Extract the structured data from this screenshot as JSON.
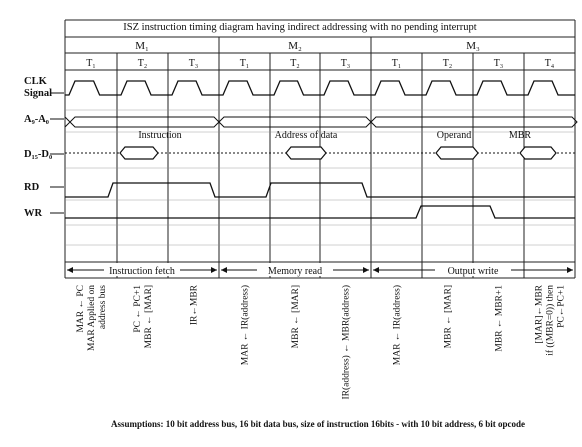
{
  "title": "ISZ instruction timing diagram having indirect addressing with no pending interrupt",
  "machine_cycles": [
    "M₁",
    "M₂",
    "M₃"
  ],
  "t_states": [
    "T₁",
    "T₂",
    "T₃",
    "T₁",
    "T₂",
    "T₃",
    "T₁",
    "T₂",
    "T₃",
    "T₄"
  ],
  "signals": {
    "clk": "CLK\nSignal",
    "address": "A₉-A₀",
    "data": "D₁₅-D₀",
    "rd": "RD",
    "wr": "WR"
  },
  "data_labels": {
    "instruction": "Instruction",
    "address_of_data": "Address of data",
    "operand": "Operand",
    "mbr": "MBR"
  },
  "phases": [
    "Instruction fetch",
    "Memory read",
    "Output write"
  ],
  "micro_ops": [
    "MAR ← PC\nMAR Applied on\naddress bus",
    "PC ← PC+1\nMBR ← [MAR]",
    "IR←MBR",
    "MAR ← IR(address)",
    "MBR ← [MAR]",
    "IR(address) ← MBR(address)",
    "MAR ← IR(address)",
    "MBR ← [MAR]",
    "MBR ← MBR+1",
    "[MAR]←MBR\nif ((MBR=0)) then\nPC←PC+1"
  ],
  "assumptions": "Assumptions: 10 bit address bus, 16 bit data bus, size of instruction 16bits - with 10 bit address, 6 bit opcode"
}
